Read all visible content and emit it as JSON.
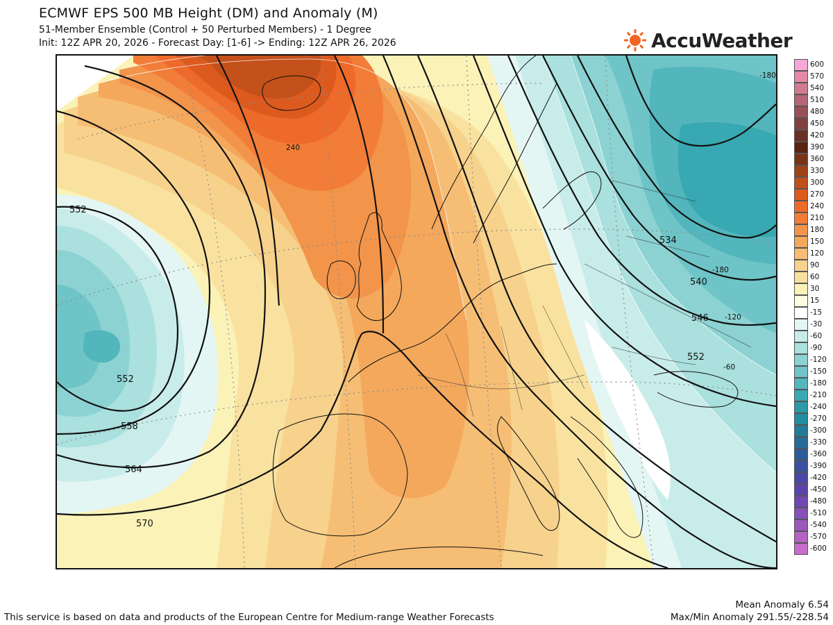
{
  "header": {
    "title": "ECMWF EPS 500 MB Height (DM) and Anomaly (M)",
    "subtitle1": "51-Member Ensemble (Control + 50 Perturbed Members) - 1 Degree",
    "subtitle2": "Init: 12Z APR 20, 2026 - Forecast Day: [1-6] -> Ending: 12Z APR 26, 2026"
  },
  "logo": {
    "text": "AccuWeather",
    "color": "#f26522"
  },
  "map": {
    "region": "Europe / North Atlantic",
    "height_contour_labels": [
      "552",
      "552",
      "558",
      "564",
      "570",
      "534",
      "540",
      "546",
      "552"
    ],
    "anomaly_labels": [
      "240",
      "-180",
      "-180",
      "-120",
      "-60"
    ]
  },
  "legend": {
    "items": [
      {
        "label": "600",
        "color": "#f7a8d8"
      },
      {
        "label": "570",
        "color": "#e48aa8"
      },
      {
        "label": "540",
        "color": "#d27a90"
      },
      {
        "label": "510",
        "color": "#b56575"
      },
      {
        "label": "480",
        "color": "#9a5058"
      },
      {
        "label": "450",
        "color": "#834040"
      },
      {
        "label": "420",
        "color": "#6c2f24"
      },
      {
        "label": "390",
        "color": "#5a2410"
      },
      {
        "label": "360",
        "color": "#7a3414"
      },
      {
        "label": "330",
        "color": "#9c4418"
      },
      {
        "label": "300",
        "color": "#c0501a"
      },
      {
        "label": "270",
        "color": "#dc5a1e"
      },
      {
        "label": "240",
        "color": "#ee6a2a"
      },
      {
        "label": "210",
        "color": "#f27d38"
      },
      {
        "label": "180",
        "color": "#f2944a"
      },
      {
        "label": "150",
        "color": "#f4a85c"
      },
      {
        "label": "120",
        "color": "#f6be74"
      },
      {
        "label": "90",
        "color": "#f7d28c"
      },
      {
        "label": "60",
        "color": "#f9e2a0"
      },
      {
        "label": "30",
        "color": "#fbf2b8"
      },
      {
        "label": "15",
        "color": "#fdfbe0"
      },
      {
        "label": "-15",
        "color": "#ffffff"
      },
      {
        "label": "-30",
        "color": "#e4f6f4"
      },
      {
        "label": "-60",
        "color": "#c8ecea"
      },
      {
        "label": "-90",
        "color": "#aae0de"
      },
      {
        "label": "-120",
        "color": "#8cd2d2"
      },
      {
        "label": "-150",
        "color": "#6ec4c6"
      },
      {
        "label": "-180",
        "color": "#52b6bc"
      },
      {
        "label": "-210",
        "color": "#38a8b2"
      },
      {
        "label": "-240",
        "color": "#2a9aa8"
      },
      {
        "label": "-270",
        "color": "#228ca0"
      },
      {
        "label": "-300",
        "color": "#227c9a"
      },
      {
        "label": "-330",
        "color": "#266c98"
      },
      {
        "label": "-360",
        "color": "#2c5c98"
      },
      {
        "label": "-390",
        "color": "#3a50a0"
      },
      {
        "label": "-420",
        "color": "#4a48a6"
      },
      {
        "label": "-450",
        "color": "#5a44ac"
      },
      {
        "label": "-480",
        "color": "#7048b2"
      },
      {
        "label": "-510",
        "color": "#8650b8"
      },
      {
        "label": "-540",
        "color": "#9c58bc"
      },
      {
        "label": "-570",
        "color": "#b462c4"
      },
      {
        "label": "-600",
        "color": "#c86ccc"
      }
    ]
  },
  "footer": {
    "attribution": "This service is based on data and products of the European Centre for Medium-range Weather Forecasts",
    "mean_anomaly": "Mean Anomaly 6.54",
    "maxmin_anomaly": "Max/Min Anomaly 291.55/-228.54"
  }
}
